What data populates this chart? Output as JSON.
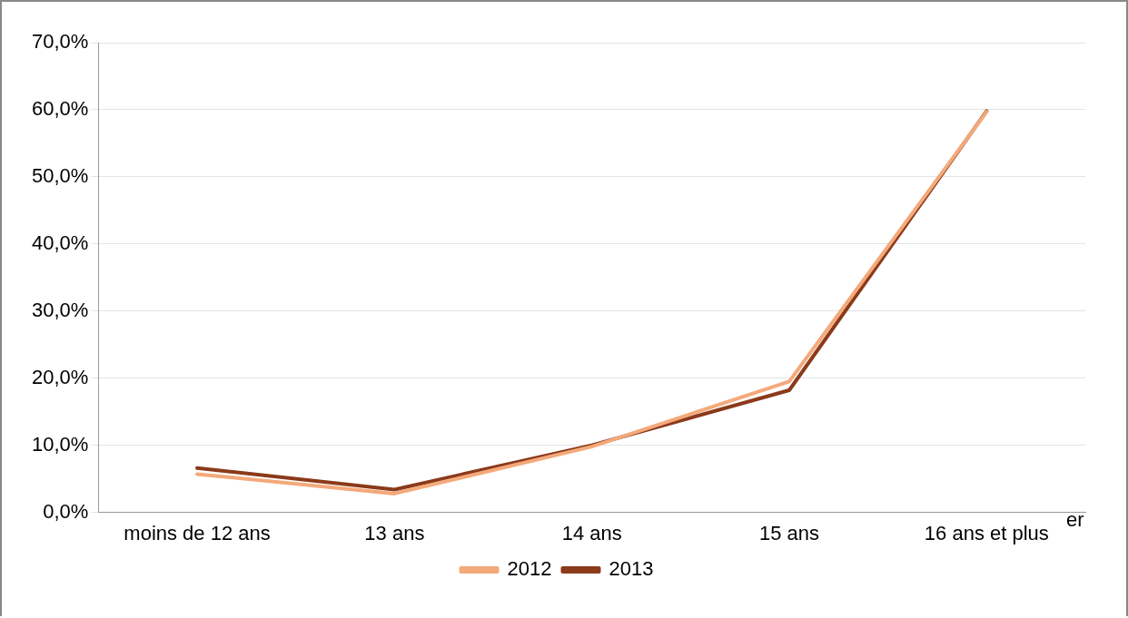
{
  "chart_data": {
    "type": "line",
    "categories": [
      "moins de 12 ans",
      "13 ans",
      "14 ans",
      "15 ans",
      "16 ans et plus"
    ],
    "series": [
      {
        "name": "2012",
        "color": "#f4a97a",
        "values": [
          5.7,
          2.8,
          9.8,
          19.5,
          59.7
        ]
      },
      {
        "name": "2013",
        "color": "#8b3a1a",
        "values": [
          6.6,
          3.4,
          10.0,
          18.2,
          59.8
        ]
      }
    ],
    "ylim": [
      0,
      70
    ],
    "yticks": [
      {
        "value": 0,
        "label": "0,0%"
      },
      {
        "value": 10,
        "label": "10,0%"
      },
      {
        "value": 20,
        "label": "20,0%"
      },
      {
        "value": 30,
        "label": "30,0%"
      },
      {
        "value": 40,
        "label": "40,0%"
      },
      {
        "value": 50,
        "label": "50,0%"
      },
      {
        "value": 60,
        "label": "60,0%"
      },
      {
        "value": 70,
        "label": "70,0%"
      }
    ],
    "grid": "y",
    "legend": "bottom",
    "marker": "none",
    "line_style": "solid",
    "annotations": [
      "er"
    ]
  }
}
